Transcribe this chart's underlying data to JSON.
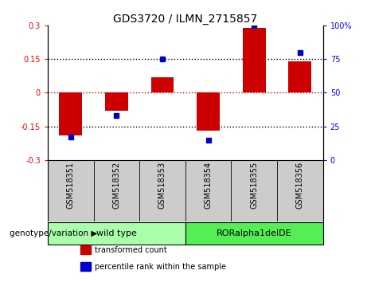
{
  "title": "GDS3720 / ILMN_2715857",
  "samples": [
    "GSM518351",
    "GSM518352",
    "GSM518353",
    "GSM518354",
    "GSM518355",
    "GSM518356"
  ],
  "transformed_count": [
    -0.19,
    -0.08,
    0.07,
    -0.17,
    0.29,
    0.14
  ],
  "percentile_rank": [
    17,
    33,
    75,
    15,
    100,
    80
  ],
  "ylim_left": [
    -0.3,
    0.3
  ],
  "ylim_right": [
    0,
    100
  ],
  "yticks_left": [
    -0.3,
    -0.15,
    0,
    0.15,
    0.3
  ],
  "yticks_right": [
    0,
    25,
    50,
    75,
    100
  ],
  "ytick_labels_left": [
    "-0.3",
    "-0.15",
    "0",
    "0.15",
    "0.3"
  ],
  "ytick_labels_right": [
    "0",
    "25",
    "50",
    "75",
    "100%"
  ],
  "hlines": [
    -0.15,
    0,
    0.15
  ],
  "bar_color": "#cc0000",
  "dot_color": "#0000cc",
  "zero_line_color": "#cc0000",
  "hline_color": "#000000",
  "bar_width": 0.5,
  "groups": [
    {
      "label": "wild type",
      "indices": [
        0,
        1,
        2
      ],
      "color": "#aaffaa"
    },
    {
      "label": "RORalpha1delDE",
      "indices": [
        3,
        4,
        5
      ],
      "color": "#55ee55"
    }
  ],
  "group_row_label": "genotype/variation",
  "legend_items": [
    {
      "label": "transformed count",
      "color": "#cc0000"
    },
    {
      "label": "percentile rank within the sample",
      "color": "#0000cc"
    }
  ],
  "background_color": "#ffffff",
  "sample_bg_color": "#cccccc",
  "title_fontsize": 10,
  "tick_fontsize": 7,
  "label_fontsize": 7.5,
  "group_fontsize": 8,
  "legend_fontsize": 7
}
